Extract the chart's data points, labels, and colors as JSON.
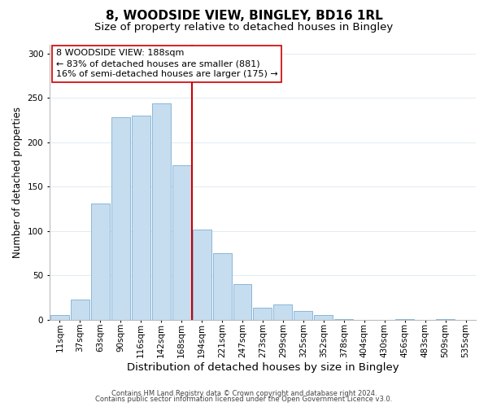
{
  "title": "8, WOODSIDE VIEW, BINGLEY, BD16 1RL",
  "subtitle": "Size of property relative to detached houses in Bingley",
  "xlabel": "Distribution of detached houses by size in Bingley",
  "ylabel": "Number of detached properties",
  "bar_labels": [
    "11sqm",
    "37sqm",
    "63sqm",
    "90sqm",
    "116sqm",
    "142sqm",
    "168sqm",
    "194sqm",
    "221sqm",
    "247sqm",
    "273sqm",
    "299sqm",
    "325sqm",
    "352sqm",
    "378sqm",
    "404sqm",
    "430sqm",
    "456sqm",
    "483sqm",
    "509sqm",
    "535sqm"
  ],
  "bar_values": [
    5,
    23,
    131,
    228,
    230,
    244,
    174,
    102,
    75,
    40,
    13,
    17,
    10,
    5,
    1,
    0,
    0,
    1,
    0,
    1,
    0
  ],
  "bar_color": "#c6ddef",
  "bar_edge_color": "#7ab0d4",
  "vline_color": "#cc0000",
  "annotation_title": "8 WOODSIDE VIEW: 188sqm",
  "annotation_line1": "← 83% of detached houses are smaller (881)",
  "annotation_line2": "16% of semi-detached houses are larger (175) →",
  "footer1": "Contains HM Land Registry data © Crown copyright and database right 2024.",
  "footer2": "Contains public sector information licensed under the Open Government Licence v3.0.",
  "ylim": [
    0,
    310
  ],
  "yticks": [
    0,
    50,
    100,
    150,
    200,
    250,
    300
  ],
  "title_fontsize": 11,
  "subtitle_fontsize": 9.5,
  "xlabel_fontsize": 9.5,
  "ylabel_fontsize": 8.5,
  "tick_fontsize": 7.5,
  "annotation_fontsize": 8,
  "footer_fontsize": 6
}
